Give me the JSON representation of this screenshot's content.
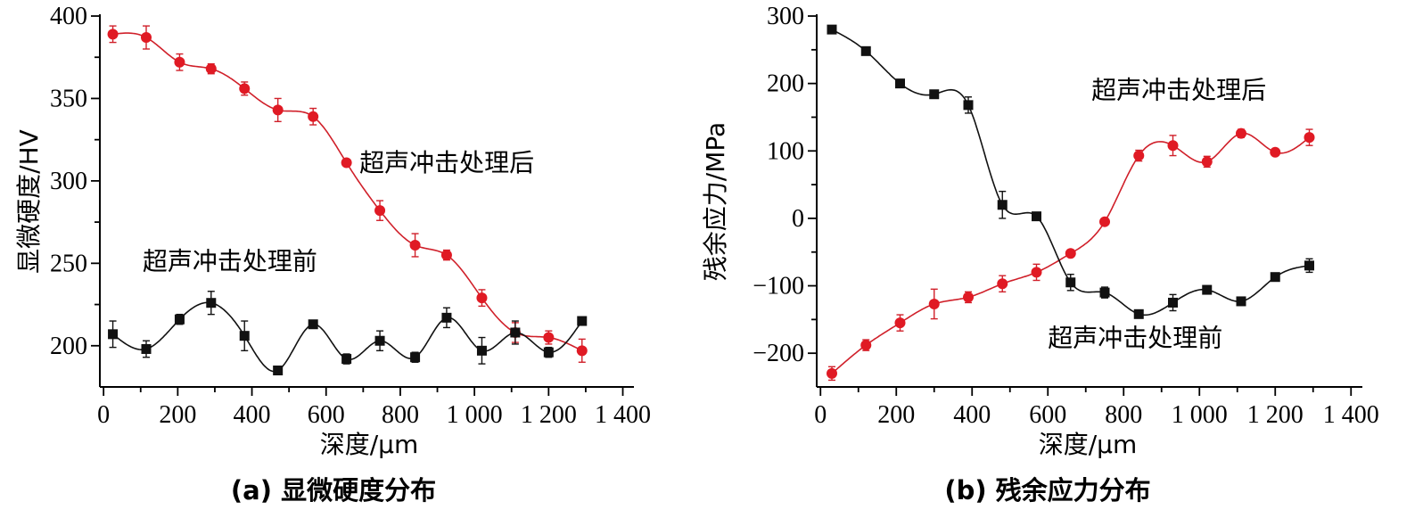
{
  "chart_data": [
    {
      "type": "scatter",
      "panel": "a",
      "caption": "(a) 显微硬度分布",
      "xlabel": "深度/μm",
      "ylabel": "显微硬度/HV",
      "xlim": [
        -10,
        1430
      ],
      "ylim": [
        175,
        400
      ],
      "xticks": [
        0,
        200,
        400,
        600,
        800,
        1000,
        1200,
        1400
      ],
      "xtick_labels": [
        "0",
        "200",
        "400",
        "600",
        "800",
        "1 000",
        "1 200",
        "1 400"
      ],
      "yticks": [
        200,
        250,
        300,
        350,
        400
      ],
      "ytick_labels": [
        "200",
        "250",
        "300",
        "350",
        "400"
      ],
      "series": [
        {
          "name": "超声冲击处理后",
          "color": "#e01a24",
          "marker": "circle",
          "x": [
            25,
            115,
            205,
            290,
            380,
            470,
            565,
            655,
            745,
            840,
            925,
            1020,
            1110,
            1200,
            1290
          ],
          "y": [
            389,
            387,
            372,
            368,
            356,
            343,
            339,
            311,
            282,
            261,
            255,
            229,
            208,
            205,
            197
          ],
          "err": [
            5,
            7,
            5,
            3,
            4,
            7,
            5,
            2,
            6,
            7,
            3,
            5,
            6,
            4,
            7
          ]
        },
        {
          "name": "超声冲击处理前",
          "color": "#111111",
          "marker": "square",
          "x": [
            25,
            115,
            205,
            290,
            380,
            470,
            565,
            655,
            745,
            840,
            925,
            1020,
            1110,
            1200,
            1290
          ],
          "y": [
            207,
            198,
            216,
            226,
            206,
            185,
            213,
            192,
            203,
            193,
            217,
            197,
            208,
            196,
            215
          ],
          "err": [
            8,
            5,
            3,
            7,
            9,
            2,
            2,
            3,
            6,
            3,
            6,
            8,
            7,
            3,
            1
          ]
        }
      ],
      "annotations": [
        {
          "text": "超声冲击处理后",
          "x": 690,
          "y": 306
        },
        {
          "text": "超声冲击处理前",
          "x": 105,
          "y": 246
        }
      ]
    },
    {
      "type": "scatter",
      "panel": "b",
      "caption": "(b) 残余应力分布",
      "xlabel": "深度/μm",
      "ylabel": "残余应力/MPa",
      "xlim": [
        -10,
        1430
      ],
      "ylim": [
        -250,
        300
      ],
      "xticks": [
        0,
        200,
        400,
        600,
        800,
        1000,
        1200,
        1400
      ],
      "xtick_labels": [
        "0",
        "200",
        "400",
        "600",
        "800",
        "1 000",
        "1 200",
        "1 400"
      ],
      "yticks": [
        -200,
        -100,
        0,
        100,
        200,
        300
      ],
      "ytick_labels": [
        "−200",
        "−100",
        "0",
        "100",
        "200",
        "300"
      ],
      "series": [
        {
          "name": "超声冲击处理后",
          "color": "#e01a24",
          "marker": "circle",
          "x": [
            30,
            120,
            210,
            300,
            390,
            480,
            570,
            660,
            750,
            840,
            930,
            1020,
            1110,
            1200,
            1290
          ],
          "y": [
            -230,
            -188,
            -155,
            -127,
            -117,
            -97,
            -80,
            -52,
            -5,
            93,
            108,
            84,
            126,
            98,
            120
          ],
          "err": [
            10,
            8,
            12,
            22,
            8,
            12,
            12,
            5,
            3,
            8,
            15,
            8,
            6,
            4,
            12
          ]
        },
        {
          "name": "超声冲击处理前",
          "color": "#111111",
          "marker": "square",
          "x": [
            30,
            120,
            210,
            300,
            390,
            480,
            570,
            660,
            750,
            840,
            930,
            1020,
            1110,
            1200,
            1290
          ],
          "y": [
            280,
            248,
            200,
            184,
            168,
            20,
            3,
            -95,
            -110,
            -142,
            -125,
            -106,
            -123,
            -87,
            -70
          ],
          "err": [
            4,
            4,
            6,
            6,
            12,
            20,
            5,
            12,
            8,
            5,
            12,
            6,
            6,
            3,
            10
          ]
        }
      ],
      "annotations": [
        {
          "text": "超声冲击处理后",
          "x": 715,
          "y": 178
        },
        {
          "text": "超声冲击处理前",
          "x": 600,
          "y": -190
        }
      ]
    }
  ]
}
